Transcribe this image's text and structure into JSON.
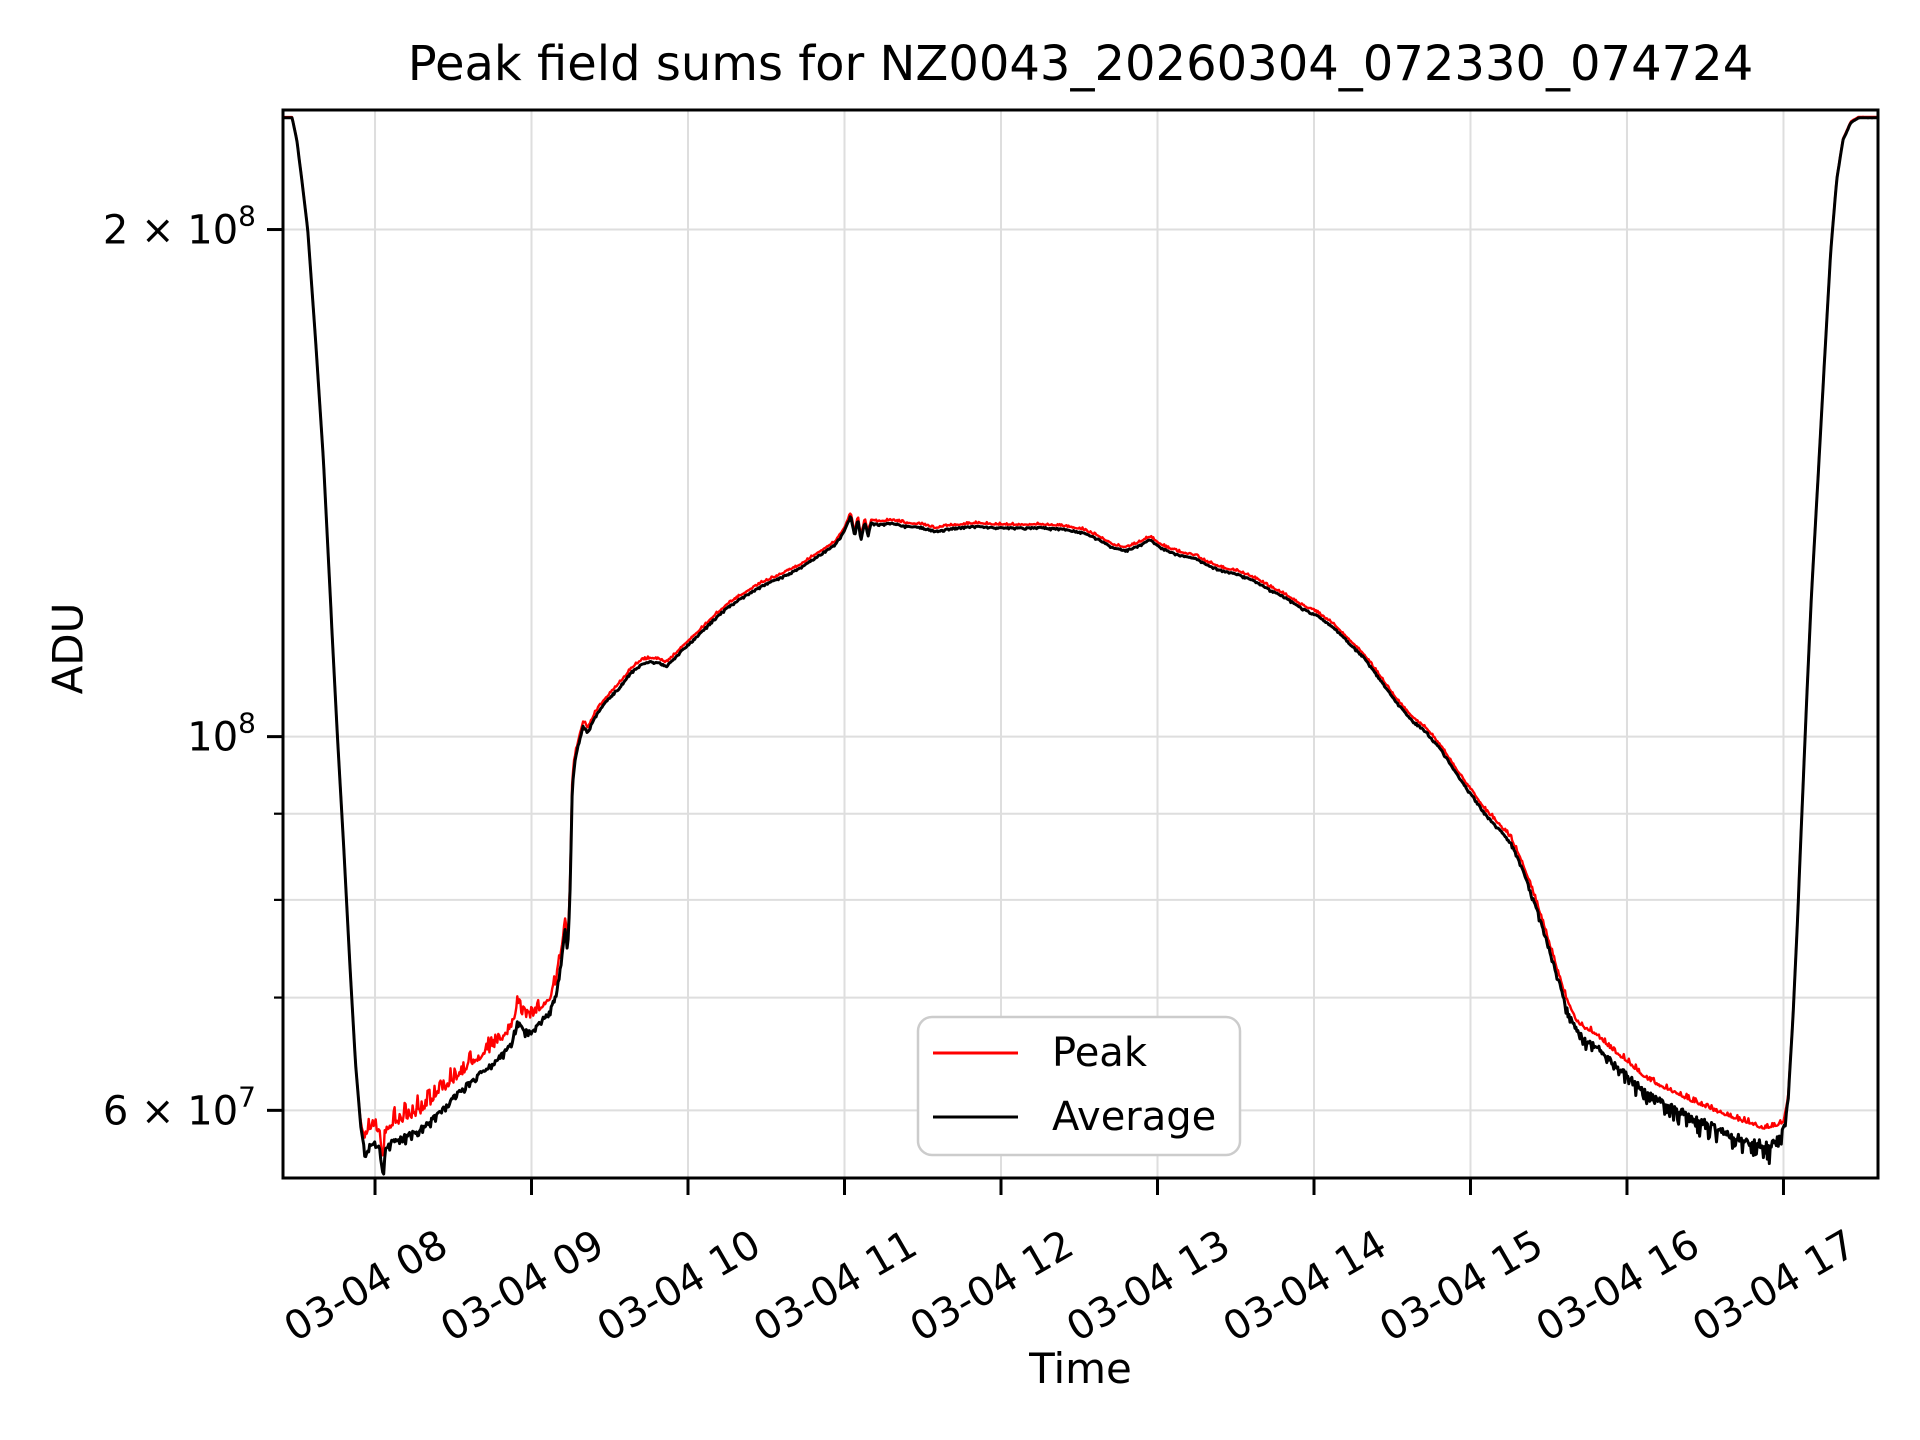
{
  "labels": {
    "title": "Peak field sums for NZ0043_20260304_072330_074724",
    "xlabel": "Time",
    "ylabel": "ADU"
  },
  "legend": {
    "entries": [
      {
        "label": "Peak",
        "color": "#ff0000"
      },
      {
        "label": "Average",
        "color": "#000000"
      }
    ]
  },
  "chart_data": {
    "type": "line",
    "title": "Peak field sums for NZ0043_20260304_072330_074724",
    "xlabel": "Time",
    "ylabel": "ADU",
    "x_axis": {
      "unit": "datetime_hours_of_03-04",
      "range_hours": [
        7.412,
        17.604
      ],
      "tick_hours": [
        8,
        9,
        10,
        11,
        12,
        13,
        14,
        15,
        16,
        17
      ],
      "tick_labels": [
        "03-04 08",
        "03-04 09",
        "03-04 10",
        "03-04 11",
        "03-04 12",
        "03-04 13",
        "03-04 14",
        "03-04 15",
        "03-04 16",
        "03-04 17"
      ],
      "tick_rotation_deg": 30
    },
    "y_axis": {
      "scale": "log",
      "unit": "ADU",
      "range_Madu": [
        54.7,
        235.5
      ],
      "labeled_ticks": [
        {
          "value_Madu": 200,
          "base": "2 × 10",
          "exp": "8"
        },
        {
          "value_Madu": 100,
          "base": "10",
          "exp": "8"
        },
        {
          "value_Madu": 60,
          "base": "6 × 10",
          "exp": "7"
        }
      ],
      "minor_unlabeled_ticks_Madu": [
        70,
        80,
        90
      ],
      "grid_values_Madu": [
        60,
        70,
        80,
        90,
        100,
        200
      ]
    },
    "grid": {
      "show": true,
      "color": "#dedede"
    },
    "series": [
      {
        "name": "Peak",
        "color": "#ff0000",
        "definition": "average_value × (1 + gap), plus upward noise spikes",
        "gap_keypoints_t_frac": [
          [
            7.412,
            0.001
          ],
          [
            7.9,
            0.001
          ],
          [
            7.95,
            0.02
          ],
          [
            8.45,
            0.02
          ],
          [
            8.9,
            0.018
          ],
          [
            9.18,
            0.015
          ],
          [
            9.26,
            0.006
          ],
          [
            9.5,
            0.005
          ],
          [
            10.5,
            0.004
          ],
          [
            14.3,
            0.004
          ],
          [
            15.0,
            0.005
          ],
          [
            15.55,
            0.008
          ],
          [
            15.75,
            0.014
          ],
          [
            16.1,
            0.018
          ],
          [
            16.5,
            0.022
          ],
          [
            16.95,
            0.022
          ],
          [
            17.02,
            0.004
          ],
          [
            17.08,
            0.002
          ],
          [
            17.604,
            0.001
          ]
        ],
        "noise_amp_keypoints_t_frac": [
          [
            7.412,
            0
          ],
          [
            7.9,
            0
          ],
          [
            7.95,
            0.03
          ],
          [
            8.45,
            0.028
          ],
          [
            8.9,
            0.022
          ],
          [
            9.2,
            0.015
          ],
          [
            9.3,
            0.004
          ],
          [
            10.0,
            0.003
          ],
          [
            14.5,
            0.003
          ],
          [
            15.5,
            0.006
          ],
          [
            15.8,
            0.008
          ],
          [
            16.3,
            0.008
          ],
          [
            16.95,
            0.008
          ],
          [
            17.03,
            0.001
          ],
          [
            17.604,
            0
          ]
        ]
      },
      {
        "name": "Average",
        "color": "#000000",
        "keypoints_t_hours_value_Madu": [
          [
            7.412,
            233
          ],
          [
            7.47,
            233
          ],
          [
            7.5,
            226
          ],
          [
            7.53,
            215
          ],
          [
            7.57,
            200
          ],
          [
            7.62,
            172
          ],
          [
            7.67,
            146
          ],
          [
            7.72,
            118
          ],
          [
            7.76,
            100
          ],
          [
            7.8,
            86
          ],
          [
            7.84,
            73
          ],
          [
            7.875,
            64
          ],
          [
            7.91,
            58.5
          ],
          [
            7.94,
            56.3
          ],
          [
            7.97,
            57.2
          ],
          [
            8.0,
            57.5
          ],
          [
            8.03,
            56.8
          ],
          [
            8.05,
            54.9
          ],
          [
            8.07,
            57
          ],
          [
            8.12,
            57.6
          ],
          [
            8.18,
            57.9
          ],
          [
            8.25,
            58.2
          ],
          [
            8.32,
            58.8
          ],
          [
            8.4,
            59.8
          ],
          [
            8.48,
            60.8
          ],
          [
            8.56,
            61.8
          ],
          [
            8.64,
            62.8
          ],
          [
            8.72,
            63.6
          ],
          [
            8.8,
            64.6
          ],
          [
            8.87,
            65.8
          ],
          [
            8.91,
            67.8
          ],
          [
            8.95,
            67
          ],
          [
            9.0,
            66.8
          ],
          [
            9.06,
            67.8
          ],
          [
            9.12,
            68.8
          ],
          [
            9.16,
            70.5
          ],
          [
            9.19,
            73.5
          ],
          [
            9.215,
            77
          ],
          [
            9.23,
            74.5
          ],
          [
            9.245,
            80
          ],
          [
            9.26,
            93
          ],
          [
            9.275,
            96.5
          ],
          [
            9.3,
            99
          ],
          [
            9.33,
            101.5
          ],
          [
            9.36,
            100.6
          ],
          [
            9.4,
            102.5
          ],
          [
            9.46,
            104.5
          ],
          [
            9.52,
            106
          ],
          [
            9.58,
            107.5
          ],
          [
            9.64,
            109.3
          ],
          [
            9.7,
            110.4
          ],
          [
            9.76,
            110.8
          ],
          [
            9.82,
            110.6
          ],
          [
            9.86,
            110.1
          ],
          [
            9.9,
            111
          ],
          [
            9.96,
            112.5
          ],
          [
            10.05,
            114.5
          ],
          [
            10.15,
            117
          ],
          [
            10.25,
            119.3
          ],
          [
            10.35,
            121
          ],
          [
            10.48,
            123
          ],
          [
            10.6,
            124.4
          ],
          [
            10.72,
            126
          ],
          [
            10.84,
            128.2
          ],
          [
            10.94,
            130
          ],
          [
            11.0,
            132.5
          ],
          [
            11.04,
            135.3
          ],
          [
            11.065,
            131.5
          ],
          [
            11.085,
            134.6
          ],
          [
            11.105,
            130.9
          ],
          [
            11.13,
            134.2
          ],
          [
            11.15,
            131.6
          ],
          [
            11.17,
            133.9
          ],
          [
            11.22,
            133.6
          ],
          [
            11.3,
            133.9
          ],
          [
            11.4,
            133.3
          ],
          [
            11.5,
            133.1
          ],
          [
            11.58,
            132.4
          ],
          [
            11.65,
            132.8
          ],
          [
            11.75,
            133.1
          ],
          [
            11.85,
            133.3
          ],
          [
            11.95,
            133.1
          ],
          [
            12.1,
            133
          ],
          [
            12.25,
            133.1
          ],
          [
            12.4,
            132.8
          ],
          [
            12.52,
            132.2
          ],
          [
            12.62,
            131
          ],
          [
            12.72,
            129.4
          ],
          [
            12.8,
            129
          ],
          [
            12.88,
            129.8
          ],
          [
            12.95,
            130.9
          ],
          [
            13.02,
            129.5
          ],
          [
            13.08,
            128.7
          ],
          [
            13.16,
            128
          ],
          [
            13.24,
            127.6
          ],
          [
            13.32,
            126.4
          ],
          [
            13.42,
            125.4
          ],
          [
            13.52,
            124.8
          ],
          [
            13.62,
            123.7
          ],
          [
            13.72,
            122.2
          ],
          [
            13.82,
            120.9
          ],
          [
            13.92,
            119.2
          ],
          [
            14.02,
            118
          ],
          [
            14.12,
            116.2
          ],
          [
            14.22,
            113.8
          ],
          [
            14.32,
            111.4
          ],
          [
            14.42,
            108.2
          ],
          [
            14.52,
            105
          ],
          [
            14.62,
            102.4
          ],
          [
            14.72,
            100.6
          ],
          [
            14.82,
            98
          ],
          [
            14.92,
            94.8
          ],
          [
            15.02,
            92
          ],
          [
            15.1,
            89.8
          ],
          [
            15.18,
            88.2
          ],
          [
            15.26,
            86.4
          ],
          [
            15.33,
            83.6
          ],
          [
            15.4,
            80.2
          ],
          [
            15.47,
            76.6
          ],
          [
            15.54,
            72.8
          ],
          [
            15.61,
            69.3
          ],
          [
            15.68,
            66.9
          ],
          [
            15.74,
            66
          ],
          [
            15.8,
            65.6
          ],
          [
            15.86,
            64.7
          ],
          [
            15.94,
            63.7
          ],
          [
            16.02,
            62.8
          ],
          [
            16.1,
            61.7
          ],
          [
            16.2,
            60.9
          ],
          [
            16.3,
            60.2
          ],
          [
            16.42,
            59.4
          ],
          [
            16.54,
            58.7
          ],
          [
            16.66,
            58.1
          ],
          [
            16.78,
            57.6
          ],
          [
            16.88,
            57.2
          ],
          [
            16.95,
            57.4
          ],
          [
            17.0,
            58.5
          ],
          [
            17.03,
            61
          ],
          [
            17.06,
            68
          ],
          [
            17.09,
            78
          ],
          [
            17.12,
            91
          ],
          [
            17.15,
            106
          ],
          [
            17.18,
            122
          ],
          [
            17.22,
            142
          ],
          [
            17.26,
            166
          ],
          [
            17.3,
            193
          ],
          [
            17.34,
            214
          ],
          [
            17.38,
            226
          ],
          [
            17.43,
            231.5
          ],
          [
            17.48,
            233
          ],
          [
            17.604,
            233
          ]
        ],
        "noise_amp_keypoints_t_frac": [
          [
            7.412,
            0
          ],
          [
            7.9,
            0
          ],
          [
            7.95,
            0.014
          ],
          [
            8.4,
            0.01
          ],
          [
            9.0,
            0.008
          ],
          [
            9.2,
            0.006
          ],
          [
            9.3,
            0.003
          ],
          [
            9.8,
            0.002
          ],
          [
            14.5,
            0.002
          ],
          [
            15.3,
            0.003
          ],
          [
            15.65,
            0.012
          ],
          [
            16.0,
            0.014
          ],
          [
            16.3,
            0.018
          ],
          [
            16.6,
            0.024
          ],
          [
            16.98,
            0.022
          ],
          [
            17.04,
            0.002
          ],
          [
            17.604,
            0
          ]
        ]
      }
    ],
    "legend_position": "lower center-right inside axes"
  }
}
